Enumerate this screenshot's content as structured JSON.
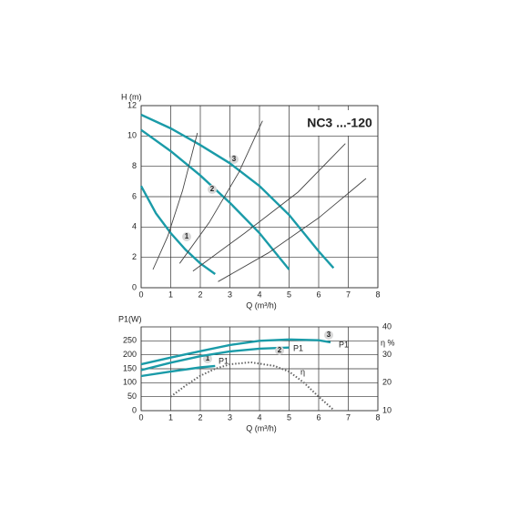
{
  "chart_data": [
    {
      "type": "line",
      "title": "NC3 ...-120",
      "y_label": "H (m)",
      "x_label": "Q (m³/h)",
      "xlim": [
        0,
        8
      ],
      "xticks": [
        0,
        1,
        2,
        3,
        4,
        5,
        6,
        7,
        8
      ],
      "ylim": [
        0,
        12
      ],
      "yticks": [
        0,
        2,
        4,
        6,
        8,
        10,
        12
      ],
      "grid": true,
      "series": [
        {
          "label": "1",
          "color": "#1a9ba8",
          "x": [
            0,
            0.5,
            1,
            1.5,
            2,
            2.5
          ],
          "values": [
            6.7,
            4.9,
            3.6,
            2.5,
            1.6,
            0.9
          ]
        },
        {
          "label": "2",
          "color": "#1a9ba8",
          "x": [
            0,
            1,
            2,
            3,
            4,
            5
          ],
          "values": [
            10.4,
            9.0,
            7.4,
            5.6,
            3.6,
            1.2
          ]
        },
        {
          "label": "3",
          "color": "#1a9ba8",
          "x": [
            0,
            1,
            2,
            3,
            4,
            5,
            6,
            6.5
          ],
          "values": [
            11.4,
            10.5,
            9.4,
            8.2,
            6.7,
            4.8,
            2.4,
            1.3
          ]
        },
        {
          "color": "#444444",
          "x": [
            0.4,
            0.9,
            1.4,
            1.9
          ],
          "values": [
            1.2,
            3.4,
            6.4,
            10.2
          ]
        },
        {
          "color": "#444444",
          "x": [
            1.3,
            2.3,
            3.3,
            4.1
          ],
          "values": [
            1.6,
            4.3,
            7.6,
            11.0
          ]
        },
        {
          "color": "#444444",
          "x": [
            1.75,
            3.5,
            5.3,
            6.9
          ],
          "values": [
            1.1,
            3.6,
            6.3,
            9.5
          ]
        },
        {
          "color": "#444444",
          "x": [
            2.6,
            4.3,
            6.0,
            7.6
          ],
          "values": [
            0.4,
            2.3,
            4.6,
            7.2
          ]
        }
      ]
    },
    {
      "type": "line",
      "y_label": "P1(W)",
      "y2_label": "η %",
      "x_label": "Q (m³/h)",
      "xlim": [
        0,
        8
      ],
      "xticks": [
        0,
        1,
        2,
        3,
        4,
        5,
        6,
        7,
        8
      ],
      "ylim": [
        0,
        300
      ],
      "yticks": [
        0,
        50,
        100,
        150,
        200,
        250
      ],
      "y2lim": [
        10,
        40
      ],
      "y2ticks": [
        10,
        20,
        30,
        40
      ],
      "grid": true,
      "series": [
        {
          "name": "P1",
          "label": "1",
          "color": "#1a9ba8",
          "x": [
            0,
            1,
            2,
            2.5
          ],
          "values": [
            124,
            140,
            155,
            160
          ]
        },
        {
          "name": "P1",
          "label": "2",
          "color": "#1a9ba8",
          "x": [
            0,
            1,
            2,
            3,
            4,
            5
          ],
          "values": [
            145,
            172,
            195,
            212,
            222,
            226
          ]
        },
        {
          "name": "P1",
          "label": "3",
          "color": "#1a9ba8",
          "x": [
            0,
            1,
            2,
            3,
            4,
            5,
            6,
            6.4
          ],
          "values": [
            166,
            190,
            213,
            235,
            250,
            255,
            252,
            245
          ]
        },
        {
          "name": "η",
          "axis": "y2",
          "dotted": true,
          "color": "#666666",
          "x": [
            1,
            1.5,
            2,
            2.5,
            3,
            3.7,
            4.5,
            5,
            5.5,
            6,
            6.5
          ],
          "values": [
            15,
            19,
            22.5,
            25,
            26.6,
            27.3,
            26,
            24,
            20,
            15,
            10.3
          ]
        }
      ]
    }
  ]
}
